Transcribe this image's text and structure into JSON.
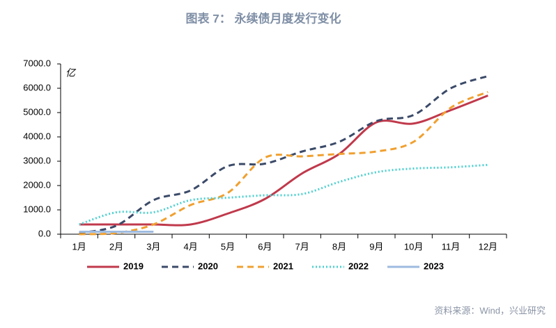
{
  "chart_data": {
    "type": "line",
    "title": "图表 7： 永续债月度发行变化",
    "y_unit": "亿",
    "source": "资料来源：Wind，兴业研究",
    "categories": [
      "1月",
      "2月",
      "3月",
      "4月",
      "5月",
      "6月",
      "7月",
      "8月",
      "9月",
      "10月",
      "11月",
      "12月"
    ],
    "series": [
      {
        "name": "2019",
        "color": "#c0394b",
        "dash": "solid",
        "values": [
          400,
          400,
          400,
          400,
          850,
          1450,
          2500,
          3300,
          4600,
          4550,
          5100,
          5700
        ]
      },
      {
        "name": "2020",
        "color": "#3b4a68",
        "dash": "dashed",
        "values": [
          50,
          350,
          1400,
          1800,
          2800,
          2900,
          3400,
          3800,
          4650,
          4900,
          6000,
          6500
        ]
      },
      {
        "name": "2021",
        "color": "#f0a030",
        "dash": "dashed",
        "values": [
          0,
          50,
          400,
          1200,
          1700,
          3150,
          3200,
          3300,
          3400,
          3800,
          5200,
          5850
        ]
      },
      {
        "name": "2022",
        "color": "#4dd0d0",
        "dash": "dotted",
        "values": [
          400,
          900,
          900,
          1400,
          1500,
          1600,
          1650,
          2150,
          2550,
          2700,
          2750,
          2850
        ]
      },
      {
        "name": "2023",
        "color": "#9dbbe0",
        "dash": "solid",
        "values": [
          100,
          100,
          100,
          null,
          null,
          null,
          null,
          null,
          null,
          null,
          null,
          null
        ]
      }
    ],
    "ylim": [
      0,
      7000
    ],
    "yticks": [
      {
        "value": 0,
        "label": "0.0"
      },
      {
        "value": 1000,
        "label": "1000.0"
      },
      {
        "value": 2000,
        "label": "2000.0"
      },
      {
        "value": 3000,
        "label": "3000.0"
      },
      {
        "value": 4000,
        "label": "4000.0"
      },
      {
        "value": 5000,
        "label": "5000.0"
      },
      {
        "value": 6000,
        "label": "6000.0"
      },
      {
        "value": 7000,
        "label": "7000.0"
      }
    ],
    "grid": false,
    "legend": "bottom"
  }
}
